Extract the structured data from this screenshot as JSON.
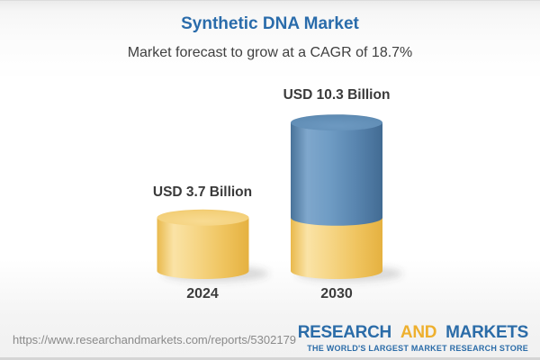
{
  "header": {
    "title": "Synthetic DNA Market",
    "subtitle": "Market forecast to grow at a CAGR of 18.7%"
  },
  "chart_data": {
    "type": "bar",
    "subtype": "3d-cylinder",
    "title": "Synthetic DNA Market",
    "subtitle": "Market forecast to grow at a CAGR of 18.7%",
    "categories": [
      "2024",
      "2030"
    ],
    "values": [
      3.7,
      10.3
    ],
    "value_labels": [
      "USD 3.7 Billion",
      "USD 10.3 Billion"
    ],
    "unit": "USD Billion",
    "cagr_percent": 18.7,
    "segments": [
      [
        {
          "value": 3.7,
          "color": "gold"
        }
      ],
      [
        {
          "value": 3.7,
          "color": "gold"
        },
        {
          "value": 6.6,
          "color": "blue"
        }
      ]
    ],
    "colors": {
      "gold": "#efc45f",
      "blue": "#5e8bb5"
    },
    "legend": "none",
    "grid": false
  },
  "footer": {
    "url": "https://www.researchandmarkets.com/reports/5302179",
    "logo": {
      "word1": "RESEARCH",
      "word2": "AND",
      "word3": "MARKETS",
      "tagline": "THE WORLD'S LARGEST MARKET RESEARCH STORE"
    }
  },
  "theme": {
    "title_color": "#2a6cab",
    "text_color": "#3a3a3a",
    "logo_blue": "#2b6ca8",
    "logo_gold": "#eeb02f",
    "url_color": "#8a8a8a"
  }
}
